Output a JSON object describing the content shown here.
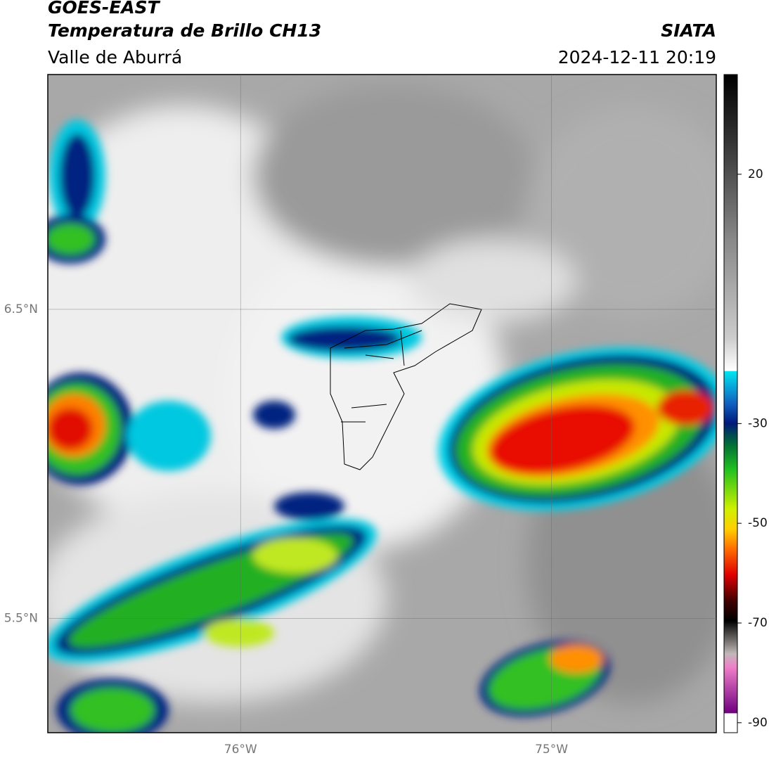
{
  "header": {
    "title": "GOES-EAST",
    "subtitle": "Temperatura de Brillo CH13",
    "region": "Valle de Aburrá",
    "source": "SIATA",
    "datetime": "2024-12-11 20:19"
  },
  "map": {
    "xlim": [
      -76.62,
      -74.47
    ],
    "ylim": [
      5.13,
      7.26
    ],
    "xticks": [
      {
        "value": -76,
        "label": "76°W"
      },
      {
        "value": -75,
        "label": "75°W"
      }
    ],
    "yticks": [
      {
        "value": 6.5,
        "label": "6.5°N"
      },
      {
        "value": 5.5,
        "label": "5.5°N"
      }
    ]
  },
  "colorbar": {
    "clim": [
      -92,
      40
    ],
    "ticks": [
      20,
      -30,
      -50,
      -70,
      -90
    ]
  }
}
